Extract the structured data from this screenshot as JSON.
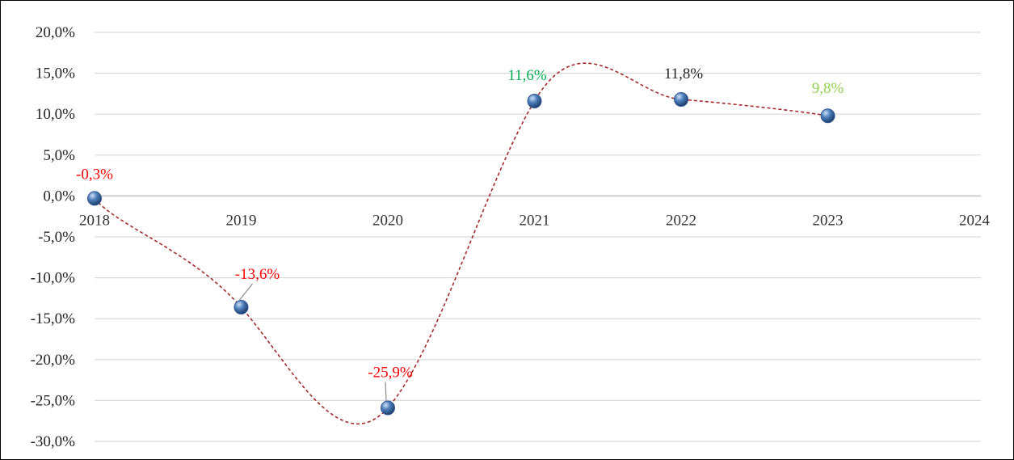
{
  "chart_data": {
    "type": "line",
    "title": "",
    "xlabel": "",
    "ylabel": "",
    "x_categories": [
      "2018",
      "2019",
      "2020",
      "2021",
      "2022",
      "2023",
      "2024"
    ],
    "y_ticks": [
      "20,0%",
      "15,0%",
      "10,0%",
      "5,0%",
      "0,0%",
      "-5,0%",
      "-10,0%",
      "-15,0%",
      "-20,0%",
      "-25,0%",
      "-30,0%"
    ],
    "ylim": [
      -30,
      20
    ],
    "y_step": 5,
    "grid": true,
    "legend": "none",
    "smooth": true,
    "line_color": "#a52a2a",
    "marker_color": "#4f81bd",
    "series": [
      {
        "x": [
          "2018",
          "2019",
          "2020",
          "2021",
          "2022",
          "2023"
        ],
        "values": [
          -0.3,
          -13.6,
          -25.9,
          11.6,
          11.8,
          9.8
        ],
        "labels": [
          {
            "text": "-0,3%",
            "color": "#ff0000",
            "size": "normal"
          },
          {
            "text": "-13,6%",
            "color": "#ff0000",
            "size": "normal"
          },
          {
            "text": "-25,9%",
            "color": "#ff0000",
            "size": "normal"
          },
          {
            "text": "11,6%",
            "color": "#00b050",
            "size": "normal"
          },
          {
            "text": "11,8%",
            "color": "#262626",
            "size": "normal"
          },
          {
            "text": "9,8%",
            "color": "#92d050",
            "size": "large"
          }
        ]
      }
    ]
  }
}
